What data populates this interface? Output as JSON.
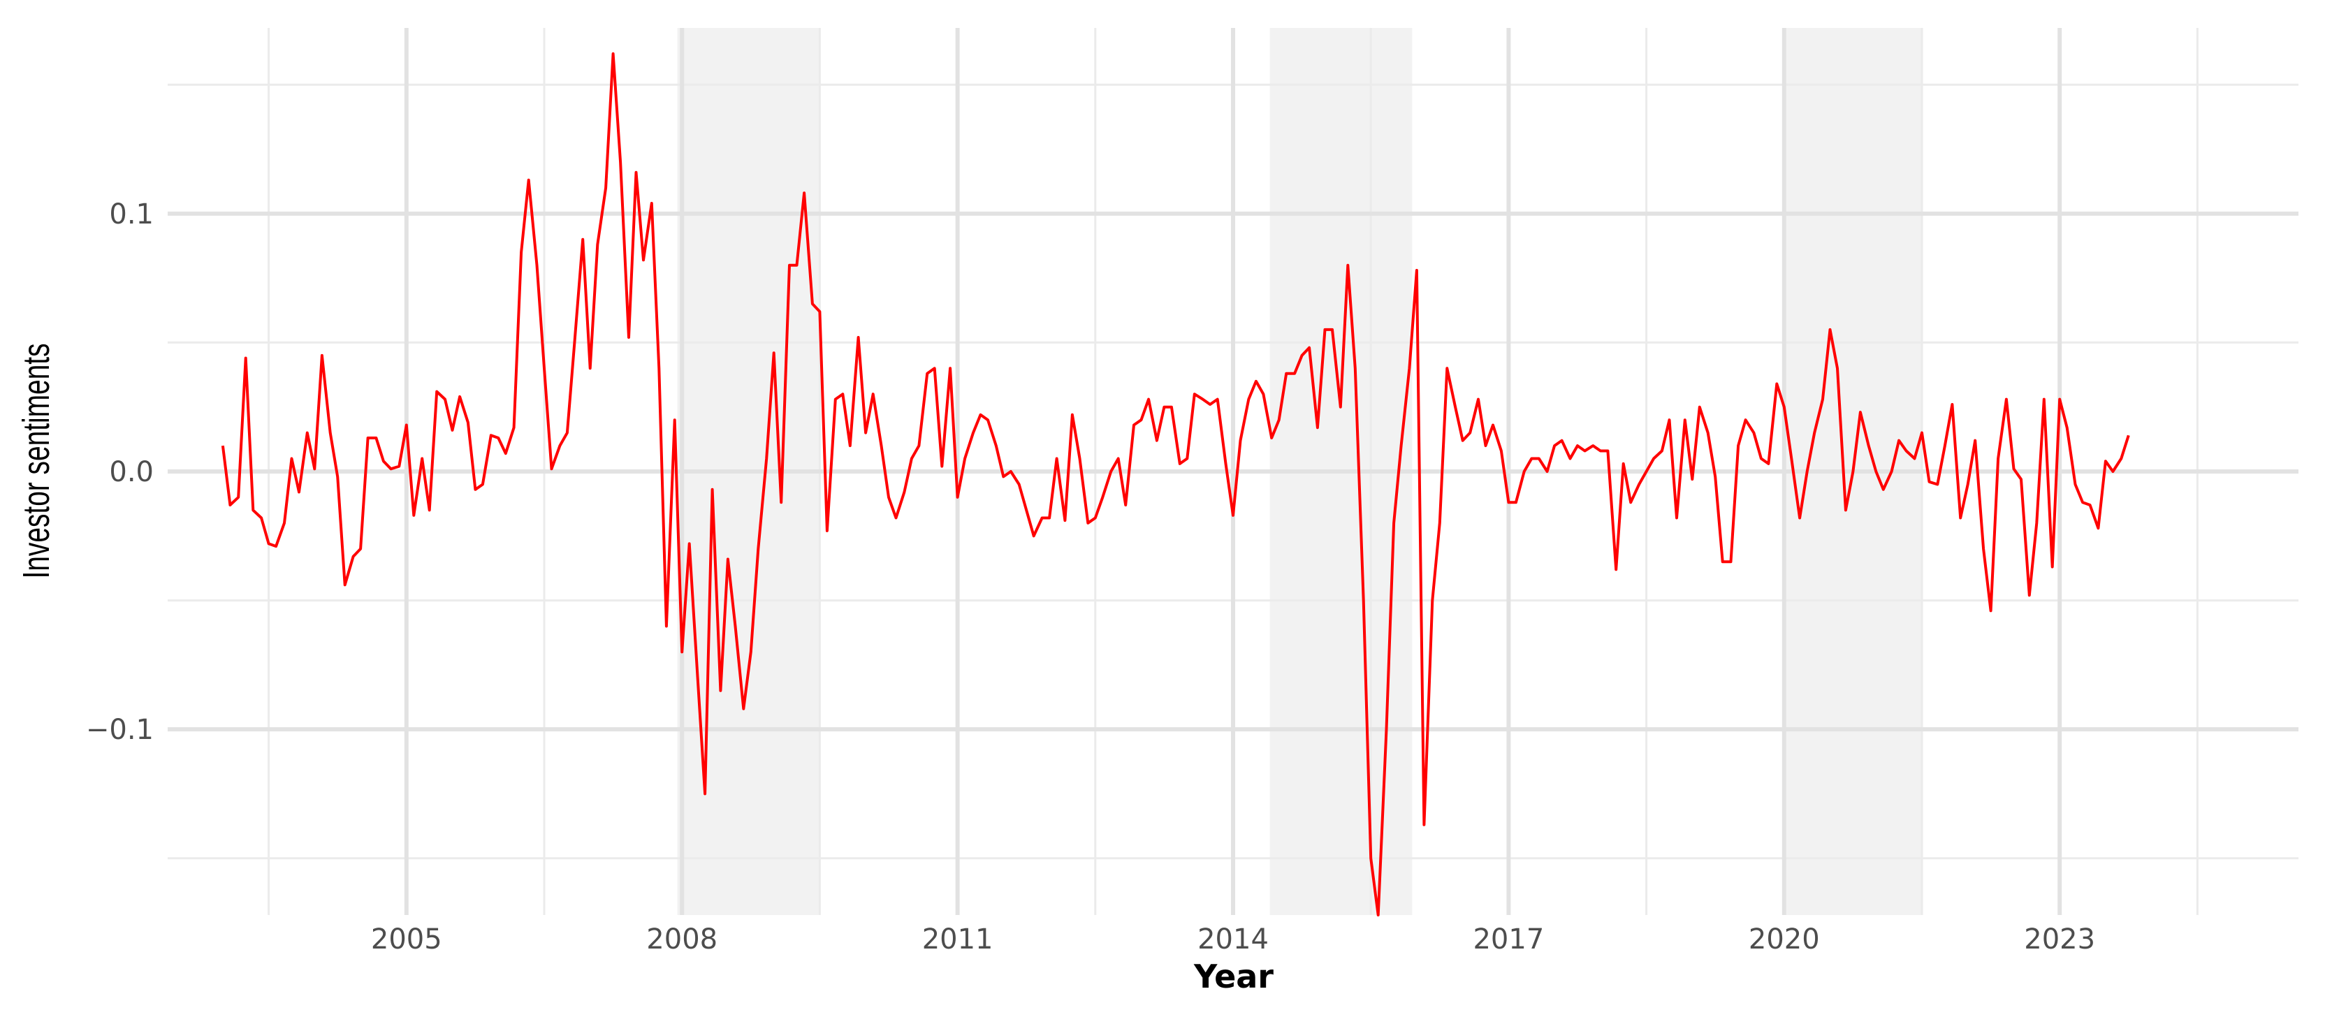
{
  "chart_data": {
    "type": "line",
    "title": "",
    "xlabel": "Year",
    "ylabel": "Investor sentiments",
    "xlim": [
      2002.4,
      2025.6
    ],
    "ylim": [
      -0.172,
      0.172
    ],
    "x_ticks": [
      2005,
      2008,
      2011,
      2014,
      2017,
      2020,
      2023
    ],
    "x_minor_ticks": [
      2003.5,
      2006.5,
      2009.5,
      2012.5,
      2015.5,
      2018.5,
      2021.5,
      2024.5
    ],
    "x_tick_labels": [
      "2005",
      "2008",
      "2011",
      "2014",
      "2017",
      "2020",
      "2023"
    ],
    "y_ticks": [
      -0.1,
      0.0,
      0.1
    ],
    "y_minor_ticks": [
      -0.15,
      -0.05,
      0.05,
      0.15
    ],
    "y_tick_labels": [
      "−0.1",
      "0.0",
      "0.1"
    ],
    "grid": true,
    "line_color": "#ff0000",
    "shaded_periods": [
      [
        2007.95,
        2009.5
      ],
      [
        2014.4,
        2015.95
      ],
      [
        2020.0,
        2021.5
      ]
    ],
    "shade_color": "#f2f2f2",
    "series": [
      {
        "x": [
          2003.0,
          2003.08,
          2003.17,
          2003.25,
          2003.33,
          2003.42,
          2003.5,
          2003.58,
          2003.67,
          2003.75,
          2003.83,
          2003.92,
          2004.0,
          2004.08,
          2004.17,
          2004.25,
          2004.33,
          2004.42,
          2004.5,
          2004.58,
          2004.67,
          2004.75,
          2004.83,
          2004.92,
          2005.0,
          2005.08,
          2005.17,
          2005.25,
          2005.33,
          2005.42,
          2005.5,
          2005.58,
          2005.67,
          2005.75,
          2005.83,
          2005.92,
          2006.0,
          2006.08,
          2006.17,
          2006.25,
          2006.33,
          2006.42,
          2006.5,
          2006.58,
          2006.67,
          2006.75,
          2006.83,
          2006.92,
          2007.0,
          2007.08,
          2007.17,
          2007.25,
          2007.33,
          2007.42,
          2007.5,
          2007.58,
          2007.67,
          2007.75,
          2007.83,
          2007.92,
          2008.0,
          2008.08,
          2008.17,
          2008.25,
          2008.33,
          2008.42,
          2008.5,
          2008.58,
          2008.67,
          2008.75,
          2008.83,
          2008.92,
          2009.0,
          2009.08,
          2009.17,
          2009.25,
          2009.33,
          2009.42,
          2009.5,
          2009.58,
          2009.67,
          2009.75,
          2009.83,
          2009.92,
          2010.0,
          2010.08,
          2010.17,
          2010.25,
          2010.33,
          2010.42,
          2010.5,
          2010.58,
          2010.67,
          2010.75,
          2010.83,
          2010.92,
          2011.0,
          2011.08,
          2011.17,
          2011.25,
          2011.33,
          2011.42,
          2011.5,
          2011.58,
          2011.67,
          2011.75,
          2011.83,
          2011.92,
          2012.0,
          2012.08,
          2012.17,
          2012.25,
          2012.33,
          2012.42,
          2012.5,
          2012.58,
          2012.67,
          2012.75,
          2012.83,
          2012.92,
          2013.0,
          2013.08,
          2013.17,
          2013.25,
          2013.33,
          2013.42,
          2013.5,
          2013.58,
          2013.67,
          2013.75,
          2013.83,
          2013.92,
          2014.0,
          2014.08,
          2014.17,
          2014.25,
          2014.33,
          2014.42,
          2014.5,
          2014.58,
          2014.67,
          2014.75,
          2014.83,
          2014.92,
          2015.0,
          2015.08,
          2015.17,
          2015.25,
          2015.33,
          2015.42,
          2015.5,
          2015.58,
          2015.67,
          2015.75,
          2015.83,
          2015.92,
          2016.0,
          2016.08,
          2016.17,
          2016.25,
          2016.33,
          2016.42,
          2016.5,
          2016.58,
          2016.67,
          2016.75,
          2016.83,
          2016.92,
          2017.0,
          2017.08,
          2017.17,
          2017.25,
          2017.33,
          2017.42,
          2017.5,
          2017.58,
          2017.67,
          2017.75,
          2017.83,
          2017.92,
          2018.0,
          2018.08,
          2018.17,
          2018.25,
          2018.33,
          2018.42,
          2018.5,
          2018.58,
          2018.67,
          2018.75,
          2018.83,
          2018.92,
          2019.0,
          2019.08,
          2019.17,
          2019.25,
          2019.33,
          2019.42,
          2019.5,
          2019.58,
          2019.67,
          2019.75,
          2019.83,
          2019.92,
          2020.0,
          2020.08,
          2020.17,
          2020.25,
          2020.33,
          2020.42,
          2020.5,
          2020.58,
          2020.67,
          2020.75,
          2020.83,
          2020.92,
          2021.0,
          2021.08,
          2021.17,
          2021.25,
          2021.33,
          2021.42,
          2021.5,
          2021.58,
          2021.67,
          2021.75,
          2021.83,
          2021.92,
          2022.0,
          2022.08,
          2022.17,
          2022.25,
          2022.33,
          2022.42,
          2022.5,
          2022.58,
          2022.67,
          2022.75,
          2022.83,
          2022.92,
          2023.0,
          2023.08,
          2023.17,
          2023.25,
          2023.33,
          2023.42,
          2023.5,
          2023.58,
          2023.67,
          2023.75
        ],
        "y": [
          0.01,
          -0.013,
          -0.01,
          0.044,
          -0.015,
          -0.018,
          -0.028,
          -0.029,
          -0.02,
          0.005,
          -0.008,
          0.015,
          0.001,
          0.045,
          0.015,
          -0.002,
          -0.044,
          -0.033,
          -0.03,
          0.013,
          0.013,
          0.004,
          0.001,
          0.002,
          0.018,
          -0.017,
          0.005,
          -0.015,
          0.031,
          0.028,
          0.016,
          0.029,
          0.019,
          -0.007,
          -0.005,
          0.014,
          0.013,
          0.007,
          0.017,
          0.085,
          0.113,
          0.08,
          0.04,
          0.001,
          0.01,
          0.015,
          0.05,
          0.09,
          0.04,
          0.088,
          0.11,
          0.162,
          0.12,
          0.052,
          0.116,
          0.082,
          0.104,
          0.04,
          -0.06,
          0.02,
          -0.07,
          -0.028,
          -0.08,
          -0.125,
          -0.007,
          -0.085,
          -0.034,
          -0.06,
          -0.092,
          -0.07,
          -0.03,
          0.005,
          0.046,
          -0.012,
          0.08,
          0.08,
          0.108,
          0.065,
          0.062,
          -0.023,
          0.028,
          0.03,
          0.01,
          0.052,
          0.015,
          0.03,
          0.01,
          -0.01,
          -0.018,
          -0.008,
          0.005,
          0.01,
          0.038,
          0.04,
          0.002,
          0.04,
          -0.01,
          0.005,
          0.015,
          0.022,
          0.02,
          0.01,
          -0.002,
          0.0,
          -0.005,
          -0.015,
          -0.025,
          -0.018,
          -0.018,
          0.005,
          -0.019,
          0.022,
          0.005,
          -0.02,
          -0.018,
          -0.01,
          0.0,
          0.005,
          -0.013,
          0.018,
          0.02,
          0.028,
          0.012,
          0.025,
          0.025,
          0.003,
          0.005,
          0.03,
          0.028,
          0.026,
          0.028,
          0.003,
          -0.017,
          0.012,
          0.028,
          0.035,
          0.03,
          0.013,
          0.02,
          0.038,
          0.038,
          0.045,
          0.048,
          0.017,
          0.055,
          0.055,
          0.025,
          0.08,
          0.04,
          -0.05,
          -0.15,
          -0.172,
          -0.1,
          -0.02,
          0.01,
          0.04,
          0.078,
          -0.137,
          -0.05,
          -0.02,
          0.04,
          0.025,
          0.012,
          0.015,
          0.028,
          0.01,
          0.018,
          0.008,
          -0.012,
          -0.012,
          0.0,
          0.005,
          0.005,
          0.0,
          0.01,
          0.012,
          0.005,
          0.01,
          0.008,
          0.01,
          0.008,
          0.008,
          -0.038,
          0.003,
          -0.012,
          -0.005,
          0.0,
          0.005,
          0.008,
          0.02,
          -0.018,
          0.02,
          -0.003,
          0.025,
          0.015,
          -0.002,
          -0.035,
          -0.035,
          0.01,
          0.02,
          0.015,
          0.005,
          0.003,
          0.034,
          0.025,
          0.005,
          -0.018,
          0.0,
          0.015,
          0.028,
          0.055,
          0.04,
          -0.015,
          0.0,
          0.023,
          0.01,
          0.0,
          -0.007,
          0.0,
          0.012,
          0.008,
          0.005,
          0.015,
          -0.004,
          -0.005,
          0.01,
          0.026,
          -0.018,
          -0.005,
          0.012,
          -0.03,
          -0.054,
          0.005,
          0.028,
          0.001,
          -0.003,
          -0.048,
          -0.02,
          0.028,
          -0.037,
          0.028,
          0.017,
          -0.005,
          -0.012,
          -0.013,
          -0.022,
          0.004,
          0.0,
          0.005,
          0.014
        ]
      }
    ]
  }
}
